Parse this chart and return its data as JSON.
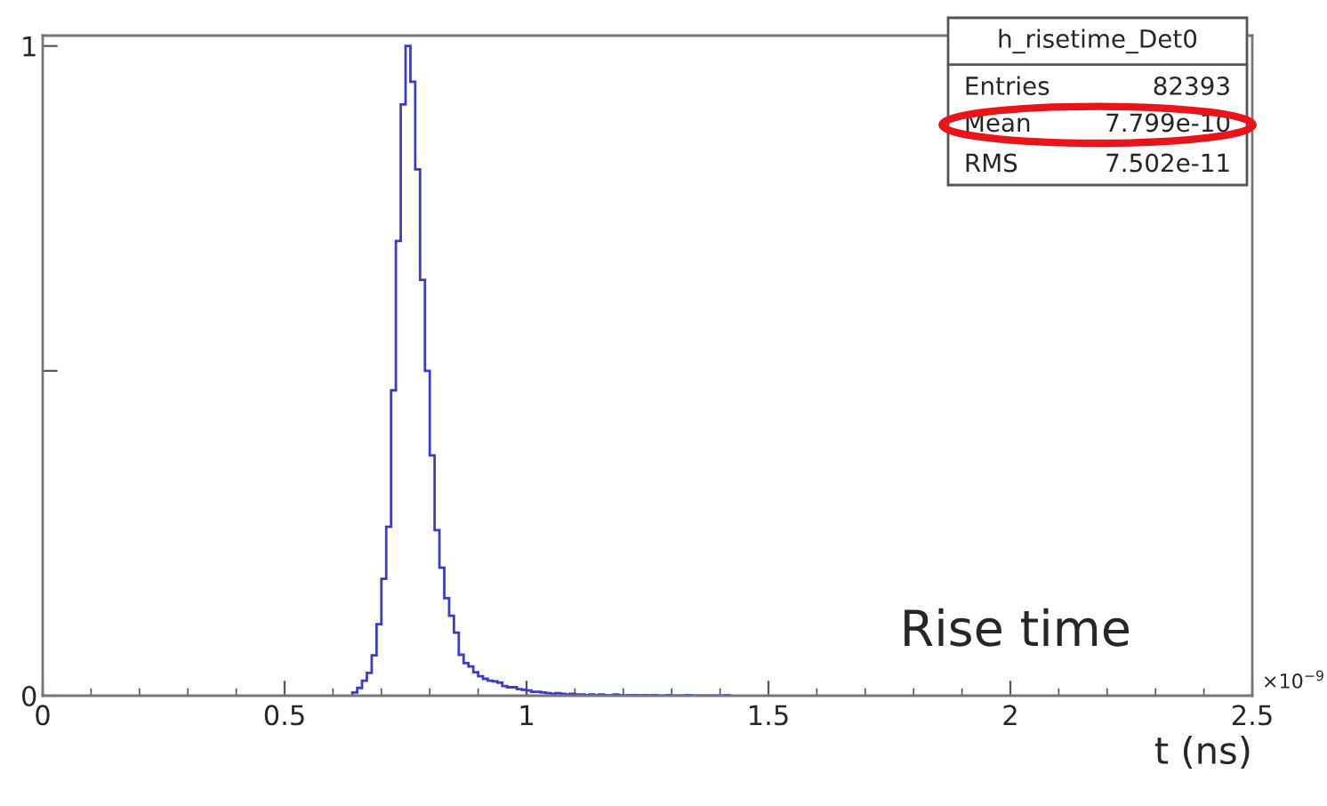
{
  "chart_data": {
    "type": "histogram",
    "xlabel": "t (ns)",
    "bins": [
      0.64,
      0.65,
      0.66,
      0.67,
      0.68,
      0.69,
      0.7,
      0.71,
      0.72,
      0.73,
      0.74,
      0.75,
      0.76,
      0.77,
      0.78,
      0.79,
      0.8,
      0.81,
      0.82,
      0.83,
      0.84,
      0.85,
      0.86,
      0.87,
      0.88,
      0.89,
      0.9,
      0.91,
      0.92,
      0.93,
      0.94,
      0.95,
      0.96,
      0.97,
      0.98,
      0.99,
      1.0,
      1.01,
      1.02,
      1.03,
      1.04,
      1.05,
      1.06,
      1.07,
      1.08,
      1.09,
      1.1,
      1.11,
      1.12,
      1.13,
      1.14,
      1.15,
      1.16,
      1.17,
      1.18,
      1.19,
      1.2,
      1.21,
      1.22,
      1.23,
      1.24,
      1.25,
      1.26,
      1.27,
      1.28,
      1.29,
      1.3,
      1.31,
      1.32,
      1.33,
      1.34,
      1.35,
      1.36,
      1.37,
      1.38,
      1.39,
      1.4,
      1.41,
      1.42
    ],
    "values": [
      0.005,
      0.012,
      0.023,
      0.035,
      0.062,
      0.11,
      0.18,
      0.26,
      0.47,
      0.7,
      0.91,
      1.0,
      0.945,
      0.81,
      0.64,
      0.5,
      0.37,
      0.255,
      0.197,
      0.15,
      0.123,
      0.097,
      0.063,
      0.05,
      0.045,
      0.036,
      0.03,
      0.026,
      0.023,
      0.022,
      0.02,
      0.015,
      0.013,
      0.013,
      0.01,
      0.009,
      0.008,
      0.006,
      0.006,
      0.005,
      0.004,
      0.003,
      0.004,
      0.003,
      0.002,
      0.003,
      0.002,
      0.002,
      0.001,
      0.002,
      0.001,
      0.002,
      0.001,
      0.001,
      0.002,
      0.001,
      0,
      0.001,
      0.001,
      0,
      0.001,
      0,
      0.001,
      0,
      0,
      0.001,
      0,
      0,
      0,
      0.001,
      0,
      0,
      0,
      0,
      0,
      0,
      0,
      0.001
    ],
    "color": "#3c3cc8",
    "xlim": [
      0,
      2.5
    ],
    "xticks": [
      0,
      0.5,
      1,
      1.5,
      2,
      2.5
    ],
    "ylim": [
      0,
      1.016
    ],
    "yticks": [
      0,
      {
        "value": 0.5,
        "label": null
      },
      1
    ],
    "grid": false,
    "annotations": [
      "h_risetime_Det0",
      "Entries",
      "82393",
      "Mean",
      "7.799e-10",
      "RMS",
      "7.502e-11",
      "Rise time",
      "×10$^{−9}$"
    ]
  }
}
